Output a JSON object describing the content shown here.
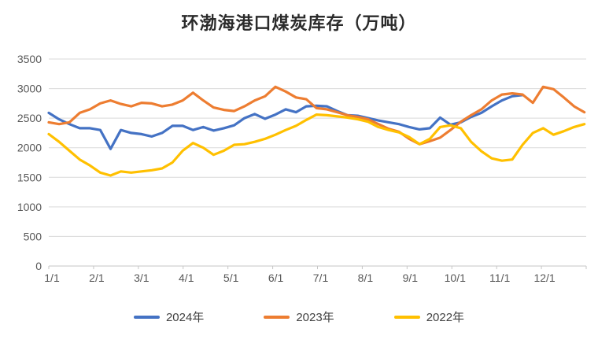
{
  "chart_data": {
    "type": "line",
    "title": "环渤海港口煤炭库存（万吨）",
    "xlabel": "",
    "ylabel": "",
    "ylim": [
      0,
      3500
    ],
    "y_ticks": [
      0,
      500,
      1000,
      1500,
      2000,
      2500,
      3000,
      3500
    ],
    "x_tick_labels": [
      "1/1",
      "2/1",
      "3/1",
      "4/1",
      "5/1",
      "6/1",
      "7/1",
      "8/1",
      "9/1",
      "10/1",
      "11/1",
      "12/1"
    ],
    "grid": "horizontal",
    "legend_position": "bottom",
    "colors": {
      "grid": "#d9d9d9",
      "axis": "#c6c6c6",
      "tick_label": "#595959"
    },
    "x_unit_note": "values are weekly samples starting 1/1; x drawn in month units",
    "series": [
      {
        "name": "2024年",
        "color": "#4472C4",
        "interval_days": 7,
        "values": [
          2590,
          2480,
          2400,
          2330,
          2330,
          2300,
          1980,
          2300,
          2250,
          2230,
          2190,
          2250,
          2370,
          2370,
          2300,
          2350,
          2290,
          2330,
          2380,
          2500,
          2570,
          2490,
          2560,
          2650,
          2600,
          2700,
          2710,
          2700,
          2620,
          2550,
          2540,
          2500,
          2460,
          2430,
          2400,
          2350,
          2310,
          2330,
          2510,
          2390,
          2430,
          2520,
          2590,
          2700,
          2800,
          2870,
          2890
        ]
      },
      {
        "name": "2023年",
        "color": "#ED7D31",
        "interval_days": 7,
        "values": [
          2430,
          2400,
          2430,
          2590,
          2650,
          2750,
          2800,
          2740,
          2700,
          2760,
          2750,
          2700,
          2730,
          2800,
          2930,
          2800,
          2680,
          2640,
          2620,
          2700,
          2800,
          2870,
          3030,
          2950,
          2850,
          2820,
          2670,
          2650,
          2600,
          2550,
          2520,
          2480,
          2400,
          2320,
          2270,
          2150,
          2060,
          2110,
          2170,
          2300,
          2440,
          2550,
          2650,
          2800,
          2900,
          2920,
          2900,
          2760,
          3030,
          2990,
          2850,
          2700,
          2600
        ]
      },
      {
        "name": "2022年",
        "color": "#FFC000",
        "interval_days": 7,
        "values": [
          2230,
          2100,
          1950,
          1800,
          1700,
          1580,
          1530,
          1600,
          1580,
          1600,
          1620,
          1650,
          1750,
          1950,
          2080,
          2000,
          1880,
          1950,
          2050,
          2060,
          2100,
          2150,
          2220,
          2300,
          2370,
          2470,
          2560,
          2550,
          2530,
          2510,
          2480,
          2440,
          2350,
          2300,
          2260,
          2180,
          2060,
          2150,
          2350,
          2380,
          2330,
          2100,
          1940,
          1820,
          1780,
          1800,
          2050,
          2250,
          2330,
          2220,
          2280,
          2350,
          2400
        ]
      }
    ]
  }
}
